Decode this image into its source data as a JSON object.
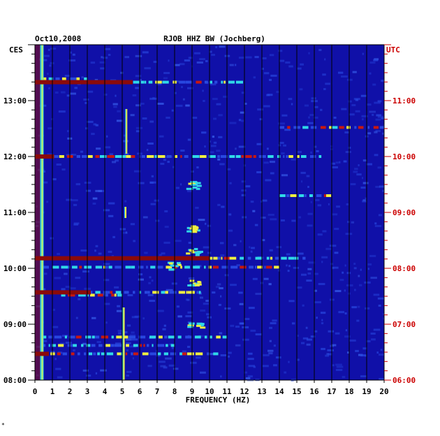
{
  "header": {
    "date": "Oct10,2008",
    "station": "RJOB HHZ BW (Jochberg)"
  },
  "colors": {
    "background": "#1010a8",
    "noise_light": "#2848e0",
    "signal_cyan": "#30d8e8",
    "signal_yellow": "#f0f040",
    "signal_red": "#c81810",
    "saturated": "#8b0a0a",
    "left_axis_text": "#000000",
    "right_axis_text": "#cc0000"
  },
  "chart_data": {
    "type": "heatmap",
    "title": "RJOB HHZ BW (Jochberg)",
    "date": "Oct10,2008",
    "xlabel": "FREQUENCY (HZ)",
    "xlim": [
      0,
      20
    ],
    "x_ticks": [
      "0",
      "1",
      "2",
      "3",
      "4",
      "5",
      "6",
      "7",
      "8",
      "9",
      "10",
      "11",
      "12",
      "13",
      "14",
      "15",
      "16",
      "17",
      "18",
      "19",
      "20"
    ],
    "left_axis": {
      "label": "CES",
      "ticks": [
        "13:00",
        "12:00",
        "11:00",
        "10:00",
        "09:00",
        "08:00"
      ],
      "tick_hours": [
        13,
        12,
        11,
        10,
        9,
        8
      ],
      "range_hours": [
        8,
        14
      ]
    },
    "right_axis": {
      "label": "UTC",
      "ticks": [
        "11:00",
        "10:00",
        "09:00",
        "08:00",
        "07:00",
        "06:00"
      ],
      "tick_hours": [
        11,
        10,
        9,
        8,
        7,
        6
      ]
    },
    "grid": true,
    "features": {
      "low_freq_band": {
        "freq_from": 0.3,
        "freq_to": 0.5
      },
      "saturated_lines": [
        {
          "time": 13.33,
          "freq_to": 5.6
        },
        {
          "time": 12.0,
          "freq_to": 1.1
        },
        {
          "time": 10.18,
          "freq_to": 10.0
        },
        {
          "time": 9.57,
          "freq_to": 3.2
        },
        {
          "time": 8.47,
          "freq_to": 0.8
        }
      ],
      "event_lines": [
        {
          "time": 13.33,
          "freq_from": 0.5,
          "freq_to": 12.0
        },
        {
          "time": 13.39,
          "freq_from": 0.5,
          "freq_to": 3.0
        },
        {
          "time": 12.52,
          "freq_from": 14.0,
          "freq_to": 20.0
        },
        {
          "time": 12.0,
          "freq_from": 0.5,
          "freq_to": 16.5
        },
        {
          "time": 10.18,
          "freq_from": 0.5,
          "freq_to": 15.5
        },
        {
          "time": 10.02,
          "freq_from": 0.5,
          "freq_to": 14.0
        },
        {
          "time": 9.57,
          "freq_from": 0.5,
          "freq_to": 9.5
        },
        {
          "time": 9.52,
          "freq_from": 1.5,
          "freq_to": 5.0
        },
        {
          "time": 8.77,
          "freq_from": 0.5,
          "freq_to": 11.0
        },
        {
          "time": 8.62,
          "freq_from": 0.5,
          "freq_to": 8.0
        },
        {
          "time": 8.47,
          "freq_from": 0.5,
          "freq_to": 10.5
        },
        {
          "time": 11.3,
          "freq_from": 14.0,
          "freq_to": 17.0
        }
      ],
      "vertical_streaks": [
        {
          "freq": 5.25,
          "time_from": 12.05,
          "time_to": 12.85
        },
        {
          "freq": 5.2,
          "time_from": 10.9,
          "time_to": 11.1
        },
        {
          "freq": 5.1,
          "time_from": 8.0,
          "time_to": 9.3
        }
      ],
      "blobs": [
        {
          "time": 9.75,
          "freq": 9.1
        },
        {
          "time": 10.05,
          "freq": 7.8
        },
        {
          "time": 10.3,
          "freq": 9.0
        },
        {
          "time": 10.72,
          "freq": 9.0
        },
        {
          "time": 11.5,
          "freq": 9.0
        },
        {
          "time": 9.0,
          "freq": 9.1
        }
      ]
    }
  },
  "footer": {
    "mark": "*"
  }
}
